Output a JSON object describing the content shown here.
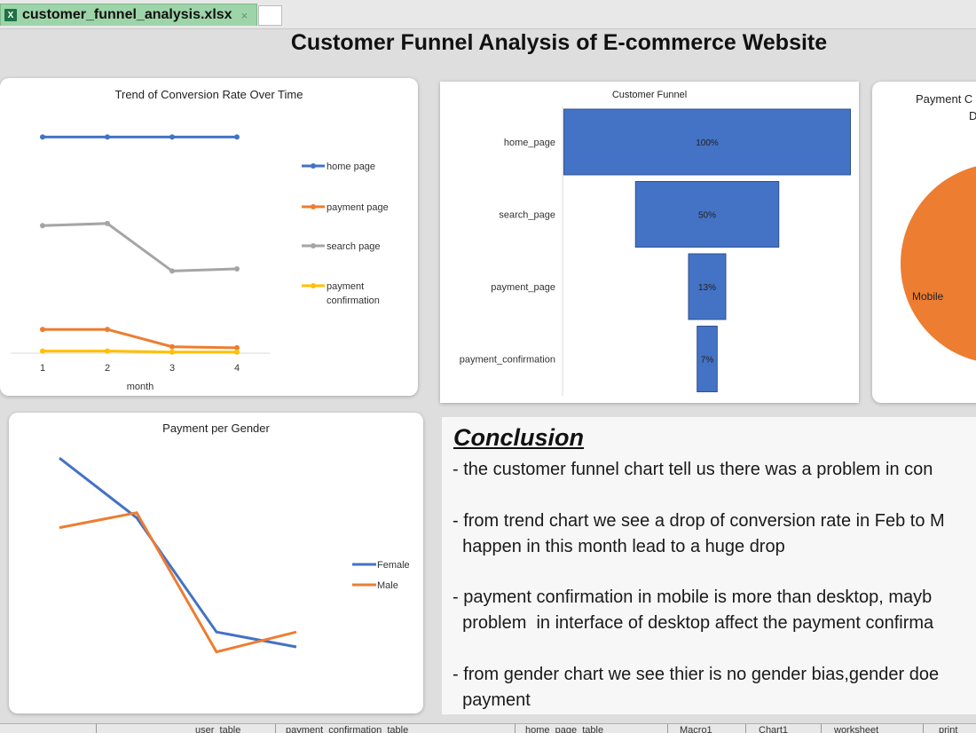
{
  "window": {
    "file_name": "customer_funnel_analysis.xlsx",
    "close_glyph": "×",
    "icon": "excel-file-icon",
    "icon_letter": "X"
  },
  "page": {
    "title": "Customer Funnel Analysis of E-commerce Website"
  },
  "charts": {
    "trend": {
      "title": "Trend of Conversion Rate Over Time",
      "xlabel": "month",
      "legend": [
        "home page",
        "payment page",
        "search page",
        "payment\nconfirmation"
      ],
      "colors": {
        "home page": "#4472c4",
        "payment page": "#ed7d31",
        "search page": "#a5a5a5",
        "payment confirmation": "#ffc000"
      }
    },
    "funnel": {
      "title": "Customer Funnel",
      "color": "#4472c4"
    },
    "payment_device": {
      "title_line1": "Payment C",
      "title_line2": "D",
      "slice_label": "Mobile",
      "color": "#ed7d31"
    },
    "gender": {
      "title": "Payment per Gender",
      "colors": {
        "Female": "#4472c4",
        "Male": "#ed7d31"
      }
    }
  },
  "chart_data": [
    {
      "type": "line",
      "title": "Trend of Conversion Rate Over Time",
      "xlabel": "month",
      "x": [
        1,
        2,
        3,
        4
      ],
      "series": [
        {
          "name": "home page",
          "values": [
            1.0,
            1.0,
            1.0,
            1.0
          ]
        },
        {
          "name": "payment page",
          "values": [
            0.11,
            0.11,
            0.03,
            0.025
          ]
        },
        {
          "name": "search page",
          "values": [
            0.59,
            0.6,
            0.38,
            0.39
          ]
        },
        {
          "name": "payment confirmation",
          "values": [
            0.01,
            0.01,
            0.005,
            0.005
          ]
        }
      ],
      "ylim": [
        0,
        1.1
      ],
      "legend": "right"
    },
    {
      "type": "bar",
      "title": "Customer Funnel",
      "categories": [
        "home_page",
        "search_page",
        "payment_page",
        "payment_confirmation"
      ],
      "values": [
        100,
        50,
        13,
        7
      ],
      "labels": [
        "100%",
        "50%",
        "13%",
        "7%"
      ],
      "orientation": "horizontal-funnel"
    },
    {
      "type": "pie",
      "title": "Payment C",
      "slices": [
        {
          "label": "Mobile",
          "color": "#ed7d31"
        }
      ]
    },
    {
      "type": "line",
      "title": "Payment per Gender",
      "x": [
        1,
        2,
        3,
        4
      ],
      "series": [
        {
          "name": "Female",
          "values": [
            0.96,
            0.72,
            0.26,
            0.2
          ]
        },
        {
          "name": "Male",
          "values": [
            0.68,
            0.74,
            0.18,
            0.26
          ]
        }
      ],
      "ylim": [
        0,
        1
      ],
      "legend": "right"
    }
  ],
  "conclusion": {
    "title": "Conclusion",
    "lines": [
      "- the customer funnel chart tell us there was a problem in con",
      "- from trend chart we see a drop of conversion rate in Feb to M",
      "  happen in this month lead to a huge drop",
      "- payment confirmation in mobile is more than desktop, mayb",
      "  problem  in interface of desktop affect the payment confirma",
      "- from gender chart we see thier is no gender bias,gender doe",
      "  payment"
    ]
  },
  "sheet_tabs": [
    "user_table",
    "payment_confirmation_table",
    "home_page_table",
    "Macro1",
    "Chart1",
    "worksheet",
    "print"
  ]
}
